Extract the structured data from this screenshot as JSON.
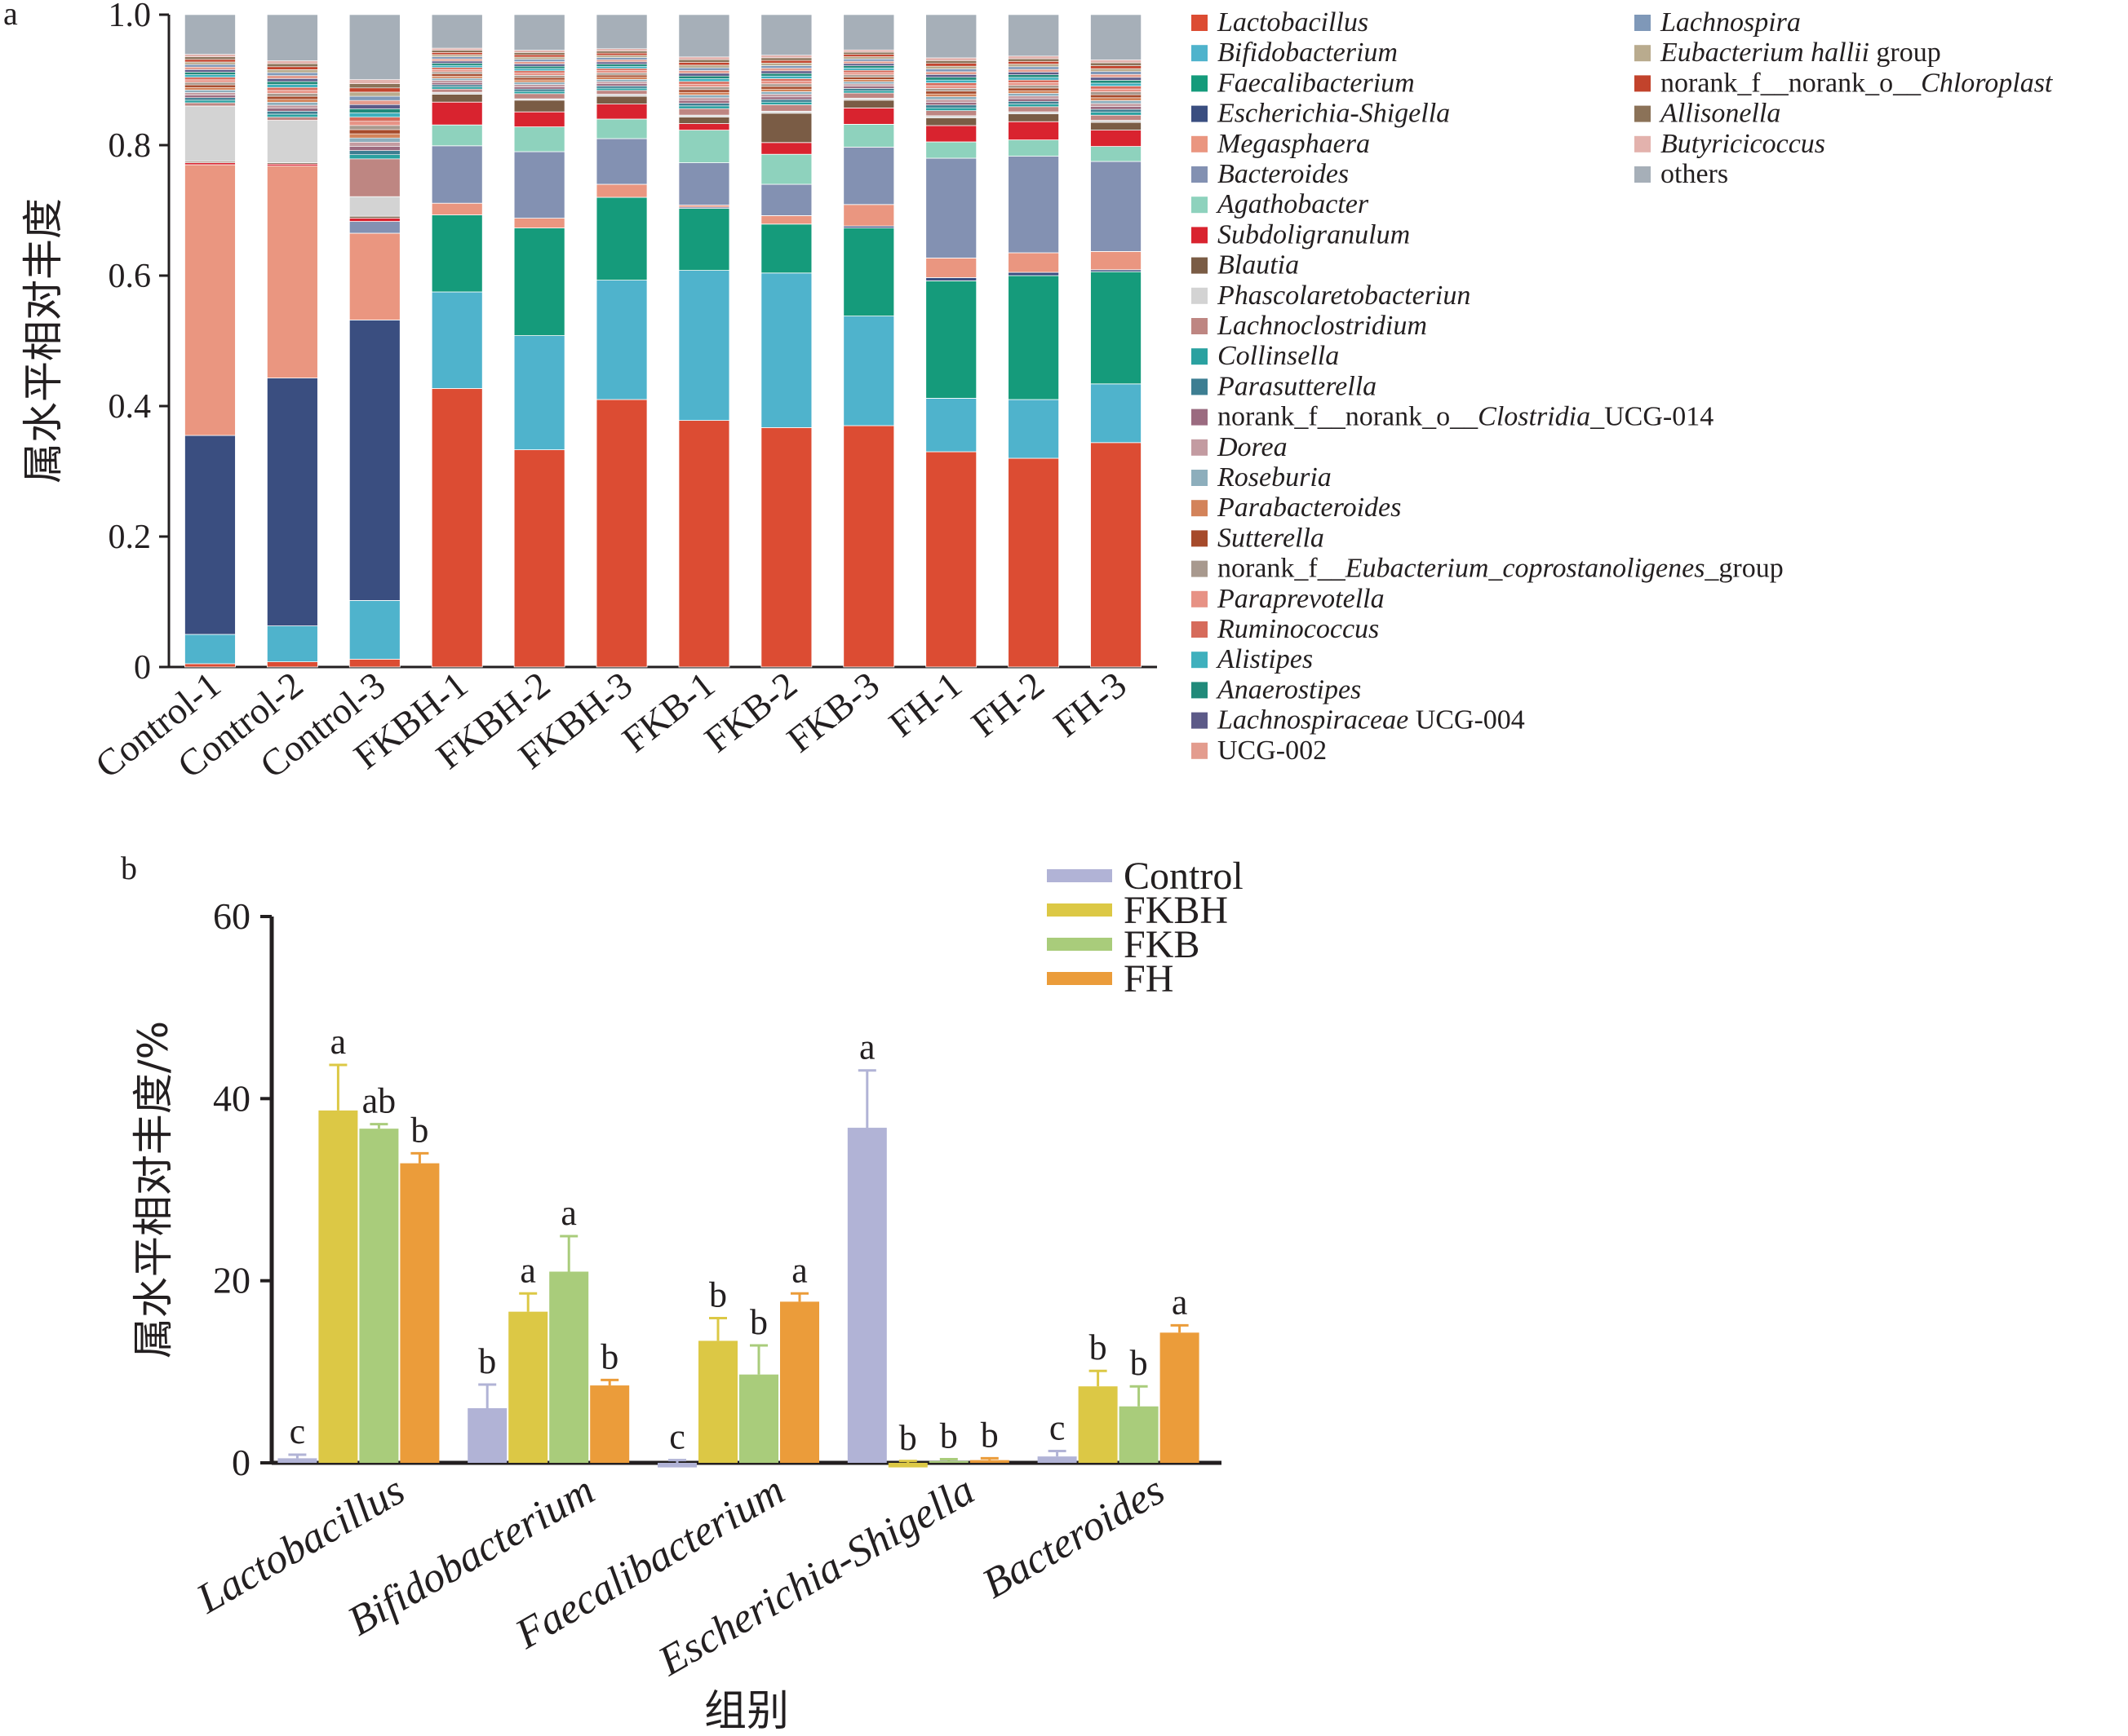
{
  "panel_labels": [
    "a",
    "b"
  ],
  "chart_data": [
    {
      "type": "bar",
      "stacked": true,
      "panel": "a",
      "ylabel": "属水平相对丰度",
      "ylim": [
        0,
        1.0
      ],
      "yticks": [
        "0",
        "0.2",
        "0.4",
        "0.6",
        "0.8",
        "1.0"
      ],
      "categories": [
        "Control-1",
        "Control-2",
        "Control-3",
        "FKBH-1",
        "FKBH-2",
        "FKBH-3",
        "FKB-1",
        "FKB-2",
        "FKB-3",
        "FH-1",
        "FH-2",
        "FH-3"
      ],
      "legend_placement": "right",
      "legend": [
        {
          "parts": [
            {
              "t": "Lactobacillus",
              "i": true
            }
          ],
          "color": "#dc4c33"
        },
        {
          "parts": [
            {
              "t": "Bifidobacterium",
              "i": true
            }
          ],
          "color": "#4fb3cc"
        },
        {
          "parts": [
            {
              "t": "Faecalibacterium",
              "i": true
            }
          ],
          "color": "#159b7b"
        },
        {
          "parts": [
            {
              "t": "Escherichia-Shigella",
              "i": true
            }
          ],
          "color": "#3a4e80"
        },
        {
          "parts": [
            {
              "t": "Megasphaera",
              "i": true
            }
          ],
          "color": "#ea9680"
        },
        {
          "parts": [
            {
              "t": "Bacteroides",
              "i": true
            }
          ],
          "color": "#8391b2"
        },
        {
          "parts": [
            {
              "t": "Agathobacter",
              "i": true
            }
          ],
          "color": "#8ed2bd"
        },
        {
          "parts": [
            {
              "t": "Subdoligranulum",
              "i": true
            }
          ],
          "color": "#d9232f"
        },
        {
          "parts": [
            {
              "t": "Blautia",
              "i": true
            }
          ],
          "color": "#7a5c45"
        },
        {
          "parts": [
            {
              "t": "Phascolaretobacteriun",
              "i": true
            }
          ],
          "color": "#d3d3d3"
        },
        {
          "parts": [
            {
              "t": "Lachnoclostridium",
              "i": true
            }
          ],
          "color": "#be8682"
        },
        {
          "parts": [
            {
              "t": "Collinsella",
              "i": true
            }
          ],
          "color": "#2aa1a0"
        },
        {
          "parts": [
            {
              "t": "Parasutterella",
              "i": true
            }
          ],
          "color": "#3d7e92"
        },
        {
          "parts": [
            {
              "t": "norank_f__norank_o__",
              "i": false
            },
            {
              "t": "Clostridia",
              "i": true
            },
            {
              "t": "_UCG-014",
              "i": false
            }
          ],
          "color": "#9b6b80"
        },
        {
          "parts": [
            {
              "t": "Dorea",
              "i": true
            }
          ],
          "color": "#c39ba1"
        },
        {
          "parts": [
            {
              "t": "Roseburia",
              "i": true
            }
          ],
          "color": "#8daebc"
        },
        {
          "parts": [
            {
              "t": "Parabacteroides",
              "i": true
            }
          ],
          "color": "#d3835a"
        },
        {
          "parts": [
            {
              "t": "Sutterella",
              "i": true
            }
          ],
          "color": "#a64a2b"
        },
        {
          "parts": [
            {
              "t": "norank_f__",
              "i": false
            },
            {
              "t": "Eubacterium_coprostanoligenes",
              "i": true
            },
            {
              "t": "_group",
              "i": false
            }
          ],
          "color": "#a8998e"
        },
        {
          "parts": [
            {
              "t": "Paraprevotella",
              "i": true
            }
          ],
          "color": "#e79285"
        },
        {
          "parts": [
            {
              "t": "Ruminococcus",
              "i": true
            }
          ],
          "color": "#d66b5b"
        },
        {
          "parts": [
            {
              "t": "Alistipes",
              "i": true
            }
          ],
          "color": "#3fb0bd"
        },
        {
          "parts": [
            {
              "t": "Anaerostipes",
              "i": true
            }
          ],
          "color": "#218a7a"
        },
        {
          "parts": [
            {
              "t": "Lachnospiraceae",
              "i": true
            },
            {
              "t": " UCG-004",
              "i": false
            }
          ],
          "color": "#5c5a88"
        },
        {
          "parts": [
            {
              "t": "UCG-002",
              "i": false
            }
          ],
          "color": "#e39c8e"
        },
        {
          "parts": [
            {
              "t": "Lachnospira",
              "i": true
            }
          ],
          "color": "#7f98b8"
        },
        {
          "parts": [
            {
              "t": "Eubacterium hallii",
              "i": true
            },
            {
              "t": " group",
              "i": false
            }
          ],
          "color": "#b9ab8e"
        },
        {
          "parts": [
            {
              "t": "norank_f__norank_o__",
              "i": false
            },
            {
              "t": "Chloroplast",
              "i": true
            }
          ],
          "color": "#c2432c"
        },
        {
          "parts": [
            {
              "t": "Allisonella",
              "i": true
            }
          ],
          "color": "#8b7258"
        },
        {
          "parts": [
            {
              "t": "Butyricicoccus",
              "i": true
            }
          ],
          "color": "#e3b2ad"
        },
        {
          "parts": [
            {
              "t": "others",
              "i": false
            }
          ],
          "color": "#a6afb8"
        }
      ],
      "series_values": {
        "Lactobacillus": [
          0.005,
          0.008,
          0.012,
          0.427,
          0.333,
          0.41,
          0.378,
          0.367,
          0.37,
          0.33,
          0.32,
          0.344
        ],
        "Bifidobacterium": [
          0.045,
          0.055,
          0.09,
          0.148,
          0.175,
          0.183,
          0.23,
          0.237,
          0.168,
          0.082,
          0.09,
          0.09
        ],
        "Faecalibacterium": [
          0.0,
          0.0,
          0.0,
          0.118,
          0.165,
          0.127,
          0.095,
          0.075,
          0.135,
          0.18,
          0.19,
          0.172
        ],
        "Escherichia-Shigella": [
          0.305,
          0.38,
          0.43,
          0.0,
          0.0,
          0.0,
          0.002,
          0.0,
          0.003,
          0.005,
          0.005,
          0.003
        ],
        "Megasphaera": [
          0.415,
          0.325,
          0.133,
          0.018,
          0.015,
          0.02,
          0.003,
          0.013,
          0.033,
          0.03,
          0.03,
          0.028
        ],
        "Bacteroides": [
          0.0,
          0.0,
          0.018,
          0.088,
          0.102,
          0.07,
          0.065,
          0.048,
          0.088,
          0.153,
          0.148,
          0.138
        ],
        "Agathobacter": [
          0.0,
          0.0,
          0.0,
          0.032,
          0.038,
          0.03,
          0.05,
          0.046,
          0.035,
          0.025,
          0.025,
          0.023
        ],
        "Subdoligranulum": [
          0.003,
          0.003,
          0.005,
          0.035,
          0.023,
          0.023,
          0.01,
          0.018,
          0.025,
          0.025,
          0.028,
          0.025
        ],
        "Blautia": [
          0.002,
          0.002,
          0.003,
          0.012,
          0.018,
          0.012,
          0.01,
          0.045,
          0.012,
          0.012,
          0.012,
          0.012
        ],
        "Phascolaretobacteriun": [
          0.085,
          0.065,
          0.03,
          0.003,
          0.002,
          0.003,
          0.003,
          0.003,
          0.003,
          0.003,
          0.003,
          0.003
        ],
        "Lachnoclostridium": [
          0.005,
          0.005,
          0.058,
          0.005,
          0.008,
          0.006,
          0.01,
          0.01,
          0.008,
          0.008,
          0.008,
          0.008
        ],
        "others_and_minor": [
          0.135,
          0.157,
          0.221,
          0.114,
          0.121,
          0.116,
          0.144,
          0.138,
          0.12,
          0.147,
          0.141,
          0.154
        ]
      }
    },
    {
      "type": "bar",
      "panel": "b",
      "ylabel": "属水平相对丰度/%",
      "xlabel": "组别",
      "ylim": [
        0,
        60
      ],
      "yticks": [
        "0",
        "20",
        "40",
        "60"
      ],
      "categories": [
        "Lactobacillus",
        "Bifidobacterium",
        "Faecalibacterium",
        "Escherichia-Shigella",
        "Bacteroides"
      ],
      "legend_placement": "top-right",
      "series": [
        {
          "name": "Control",
          "color": "#b1b3d6",
          "values": [
            0.5,
            6.0,
            -0.5,
            36.8,
            0.7
          ],
          "errors": [
            0.4,
            2.6,
            0.3,
            6.3,
            0.6
          ],
          "letters": [
            "c",
            "b",
            "c",
            "a",
            "c"
          ]
        },
        {
          "name": "FKBH",
          "color": "#dcc845",
          "values": [
            38.7,
            16.6,
            13.4,
            -0.5,
            8.4
          ],
          "errors": [
            5.0,
            2.0,
            2.5,
            0.2,
            1.7
          ],
          "letters": [
            "a",
            "a",
            "b",
            "b",
            "b"
          ]
        },
        {
          "name": "FKB",
          "color": "#a9cc7b",
          "values": [
            36.7,
            21.0,
            9.7,
            0.2,
            6.2
          ],
          "errors": [
            0.5,
            3.9,
            3.2,
            0.2,
            2.2
          ],
          "letters": [
            "ab",
            "a",
            "b",
            "b",
            "b"
          ]
        },
        {
          "name": "FH",
          "color": "#eb9c3a",
          "values": [
            32.9,
            8.5,
            17.7,
            0.3,
            14.3
          ],
          "errors": [
            1.1,
            0.6,
            0.9,
            0.2,
            0.8
          ],
          "letters": [
            "b",
            "b",
            "a",
            "b",
            "a"
          ]
        }
      ]
    }
  ]
}
